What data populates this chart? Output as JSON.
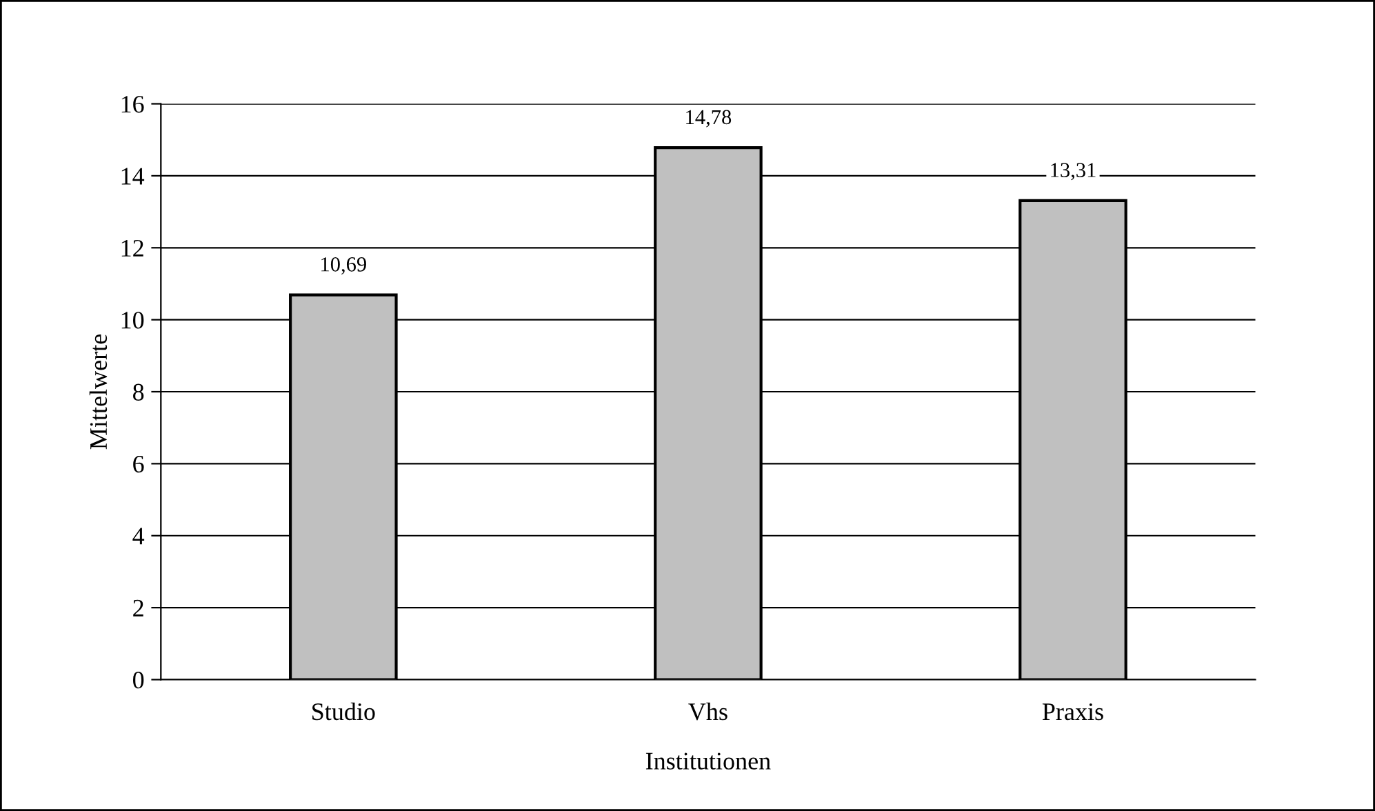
{
  "chart_data": {
    "type": "bar",
    "xlabel": "Institutionen",
    "ylabel": "Mittelwerte",
    "categories": [
      "Studio",
      "Vhs",
      "Praxis"
    ],
    "values": [
      10.69,
      14.78,
      13.31
    ],
    "value_labels": [
      "10,69",
      "14,78",
      "13,31"
    ],
    "color": "#c0c0c0",
    "ylim": [
      0,
      16
    ],
    "yticks": [
      0,
      2,
      4,
      6,
      8,
      10,
      12,
      14,
      16
    ],
    "grid": "y"
  }
}
